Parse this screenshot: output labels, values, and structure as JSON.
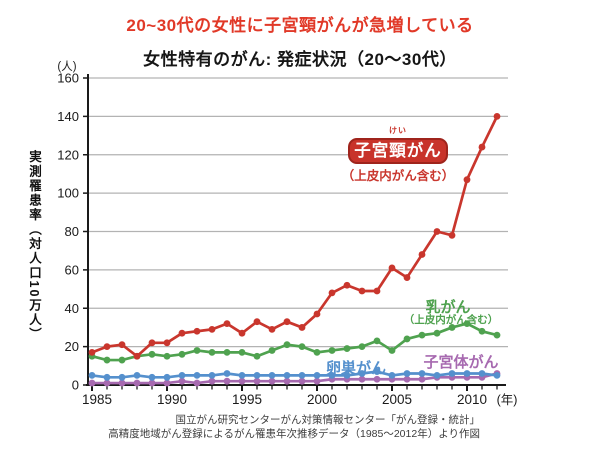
{
  "page": {
    "headline": "20~30代の女性に子宮頸がんが急増している",
    "source_line1": "国立がん研究センターがん対策情報センター「がん登録・統計」",
    "source_line2": "高精度地域がん登録によるがん罹患年次推移データ（1985～2012年）より作図"
  },
  "colors": {
    "headline_red": "#e13928",
    "series_red": "#c9362d",
    "series_green": "#4fa24f",
    "series_blue": "#5590cd",
    "series_purple": "#a76ab0",
    "badge_bg": "#c8332a",
    "badge_border": "#9f241c",
    "badge_text": "#ffffff",
    "grid": "#b3b3b3",
    "axis": "#1a1a1a",
    "caption": "#3c3c3c"
  },
  "chart_data": {
    "type": "line",
    "title": "女性特有のがん: 発症状況（20～30代）",
    "y_axis_label": "実測罹患率（対人口10万人）",
    "y_unit_label": "(人)",
    "x_unit_label": "(年)",
    "ylim": [
      0,
      160
    ],
    "yticks": [
      0,
      20,
      40,
      60,
      80,
      100,
      120,
      140,
      160
    ],
    "xticks": [
      1985,
      1990,
      1995,
      2000,
      2005,
      2010
    ],
    "grid": true,
    "legend_position": "inline-annotations",
    "x": [
      1985,
      1986,
      1987,
      1988,
      1989,
      1990,
      1991,
      1992,
      1993,
      1994,
      1995,
      1996,
      1997,
      1998,
      1999,
      2000,
      2001,
      2002,
      2003,
      2004,
      2005,
      2006,
      2007,
      2008,
      2009,
      2010,
      2011,
      2012
    ],
    "series": [
      {
        "key": "cervical",
        "name": "子宮頸がん",
        "furigana": "けい",
        "sublabel": "（上皮内がん含む）",
        "color": "#c9362d",
        "values": [
          17,
          20,
          21,
          15,
          22,
          22,
          27,
          28,
          29,
          32,
          27,
          33,
          29,
          33,
          30,
          37,
          48,
          52,
          49,
          49,
          61,
          56,
          68,
          80,
          78,
          107,
          124,
          140
        ]
      },
      {
        "key": "breast",
        "name": "乳がん",
        "sublabel": "（上皮内がん含む）",
        "color": "#4fa24f",
        "values": [
          15,
          13,
          13,
          15,
          16,
          15,
          16,
          18,
          17,
          17,
          17,
          15,
          18,
          21,
          20,
          17,
          18,
          19,
          20,
          23,
          18,
          24,
          26,
          27,
          30,
          32,
          28,
          26
        ]
      },
      {
        "key": "ovarian",
        "name": "卵巣がん",
        "color": "#5590cd",
        "values": [
          5,
          4,
          4,
          5,
          4,
          4,
          5,
          5,
          5,
          6,
          5,
          5,
          5,
          5,
          5,
          5,
          5,
          5,
          6,
          7,
          5,
          6,
          6,
          5,
          6,
          6,
          6,
          5
        ]
      },
      {
        "key": "uterine_corpus",
        "name": "子宮体がん",
        "color": "#a76ab0",
        "values": [
          1,
          1,
          1,
          1,
          1,
          1,
          2,
          1,
          2,
          2,
          2,
          2,
          2,
          2,
          2,
          2,
          3,
          3,
          3,
          3,
          3,
          3,
          3,
          4,
          4,
          4,
          4,
          6
        ]
      }
    ]
  }
}
